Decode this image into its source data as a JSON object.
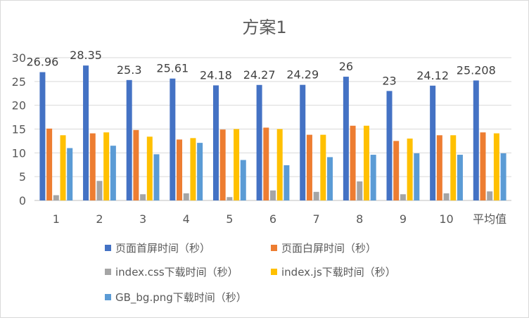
{
  "chart_data": {
    "type": "bar",
    "title": "方案1",
    "xlabel": "",
    "ylabel": "",
    "ylim": [
      0,
      30
    ],
    "yticks": [
      0,
      5,
      10,
      15,
      20,
      25,
      30
    ],
    "grid": true,
    "legend_position": "bottom",
    "categories": [
      "1",
      "2",
      "3",
      "4",
      "5",
      "6",
      "7",
      "8",
      "9",
      "10",
      "平均值"
    ],
    "series": [
      {
        "name": "页面首屏时间（秒）",
        "color": "#4472c4",
        "values": [
          26.96,
          28.35,
          25.3,
          25.61,
          24.18,
          24.27,
          24.29,
          26,
          23,
          24.12,
          25.208
        ],
        "labels": [
          "26.96",
          "28.35",
          "25.3",
          "25.61",
          "24.18",
          "24.27",
          "24.29",
          "26",
          "23",
          "24.12",
          "25.208"
        ]
      },
      {
        "name": "页面白屏时间（秒）",
        "color": "#ed7d31",
        "values": [
          15.1,
          14.1,
          14.8,
          12.8,
          14.9,
          15.3,
          13.8,
          15.7,
          12.5,
          13.7,
          14.3
        ]
      },
      {
        "name": "index.css下载时间（秒）",
        "color": "#a5a5a5",
        "values": [
          1.1,
          4.1,
          1.3,
          1.5,
          0.7,
          2.1,
          1.8,
          4.0,
          1.3,
          1.5,
          1.9
        ]
      },
      {
        "name": "index.js下载时间（秒）",
        "color": "#ffc000",
        "values": [
          13.7,
          14.3,
          13.4,
          13.1,
          15.0,
          15.0,
          13.8,
          15.7,
          13.0,
          13.7,
          14.1
        ]
      },
      {
        "name": "GB_bg.png下载时间（秒）",
        "color": "#5b9bd5",
        "values": [
          11.0,
          11.5,
          9.7,
          12.1,
          8.5,
          7.4,
          9.1,
          9.6,
          9.9,
          9.6,
          9.9
        ]
      }
    ]
  }
}
